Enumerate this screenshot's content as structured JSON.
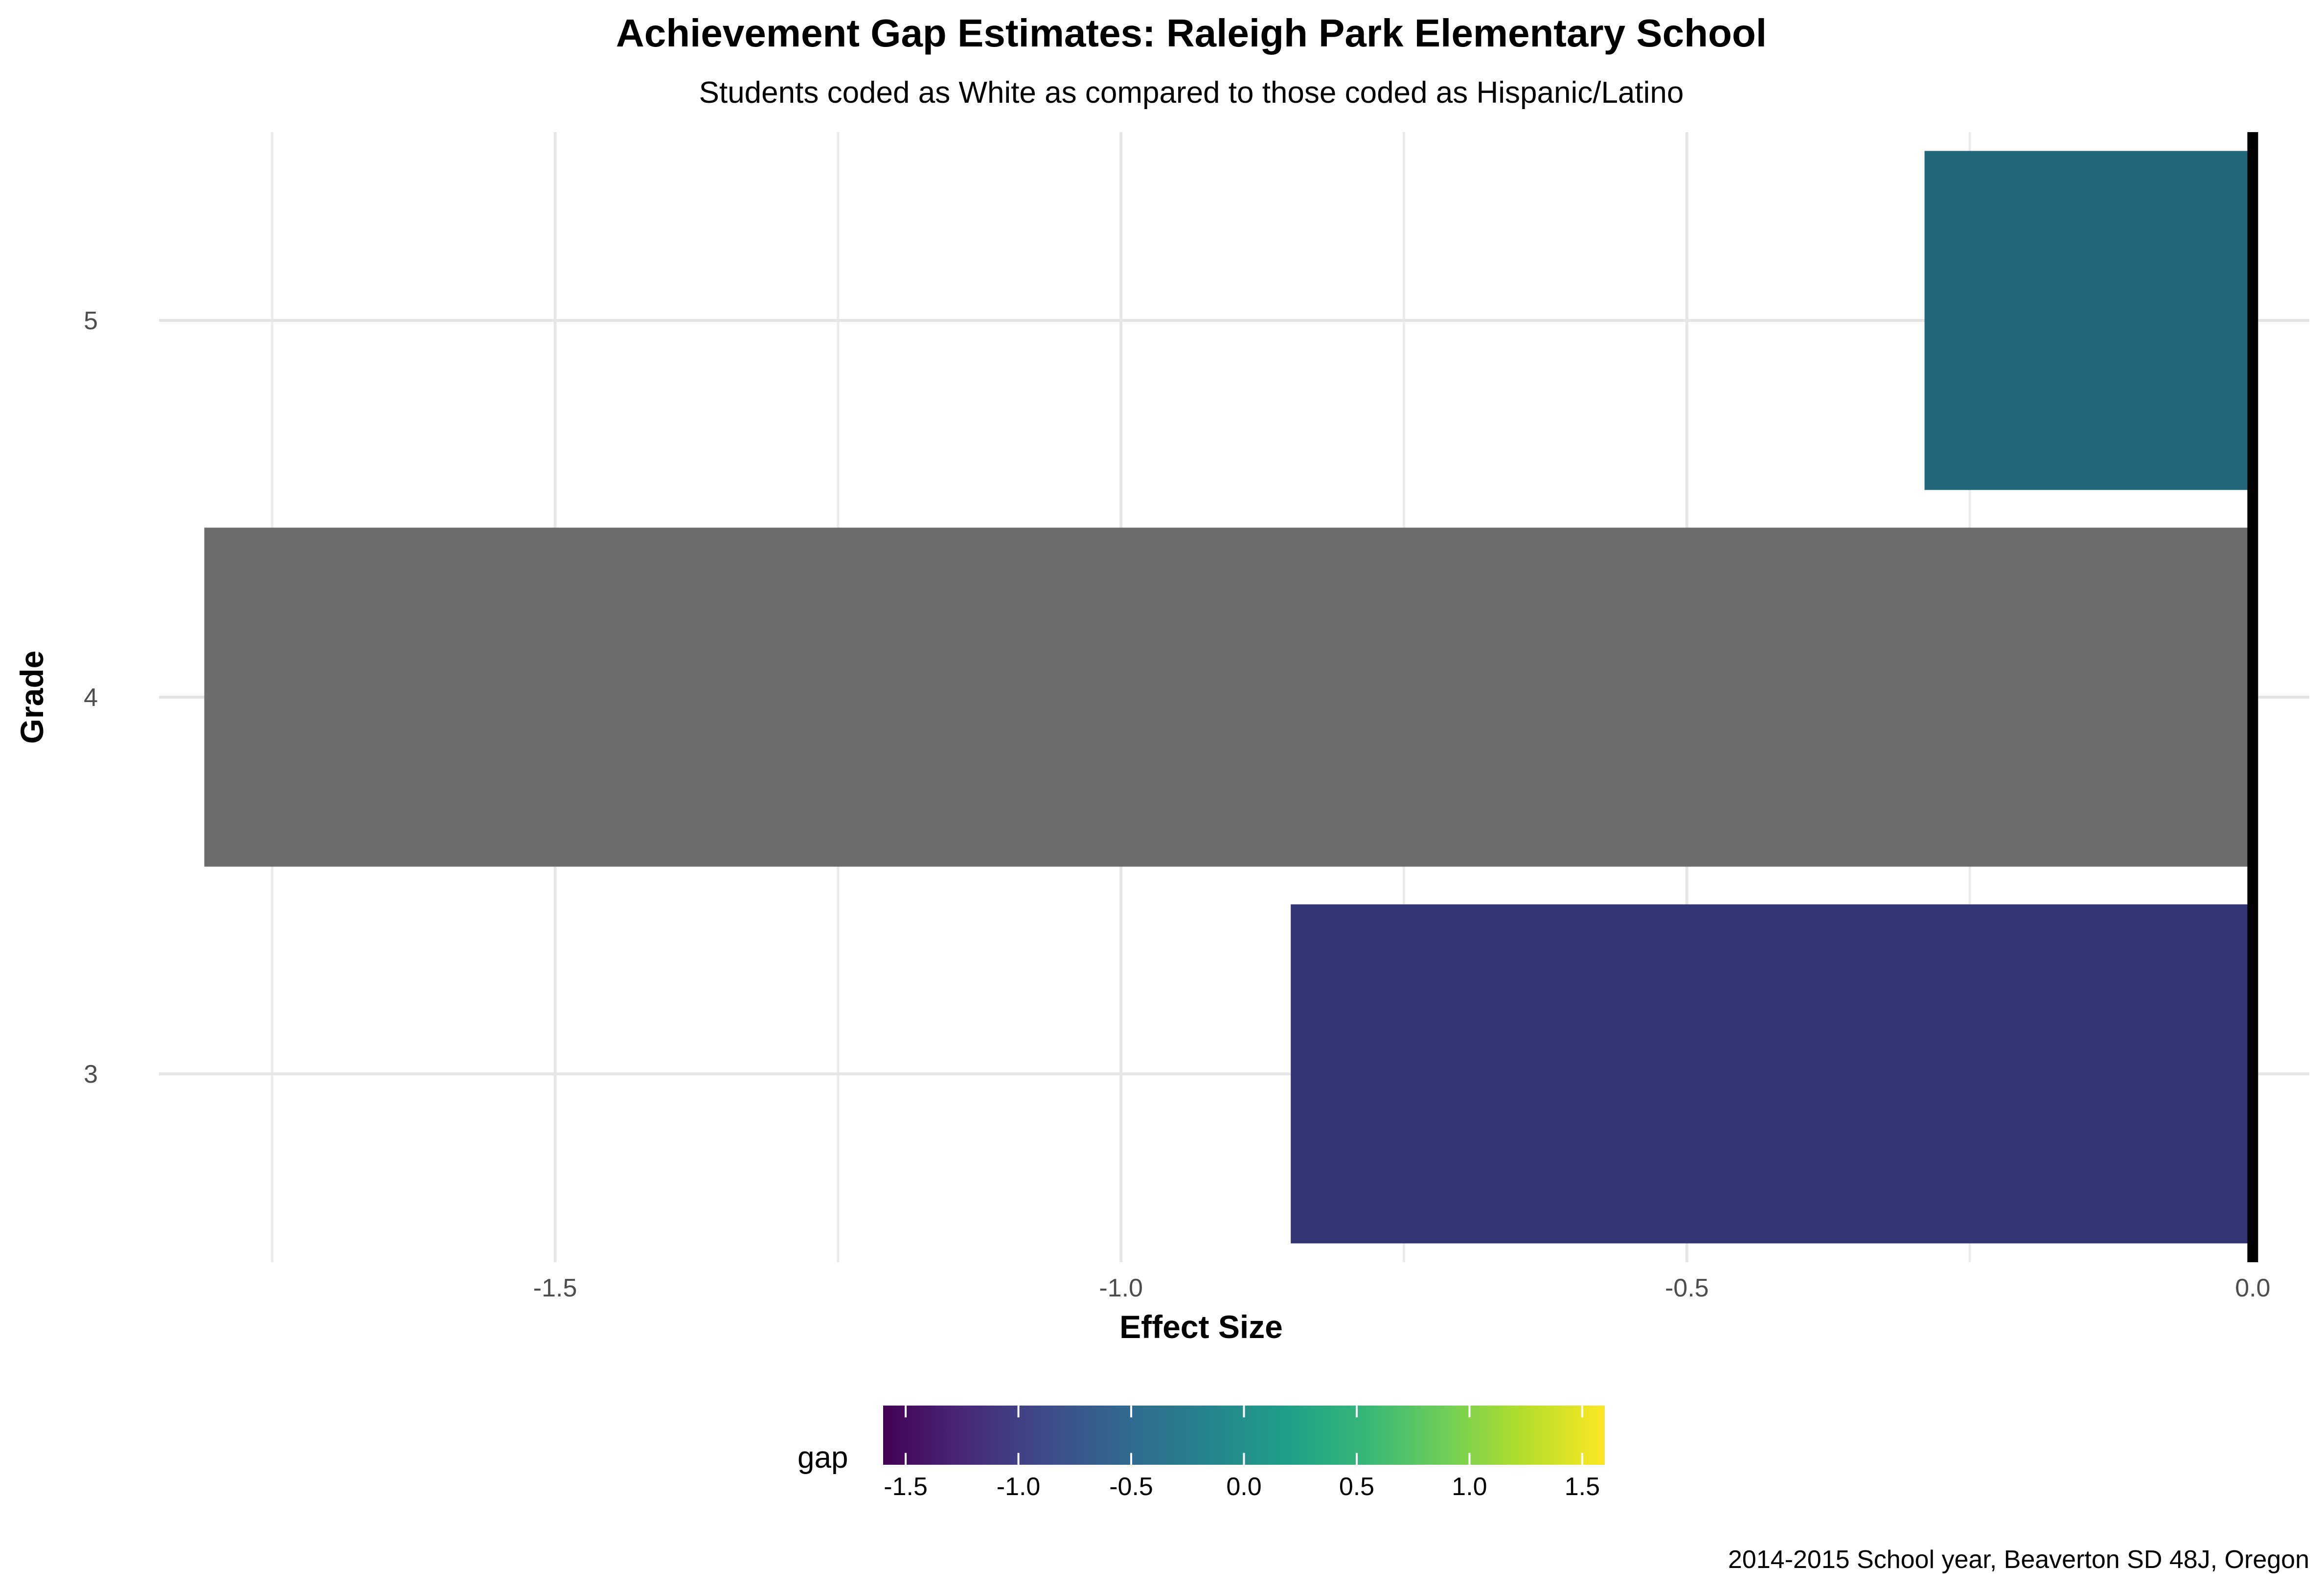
{
  "chart_data": {
    "type": "bar",
    "orientation": "horizontal",
    "title": "Achievement Gap Estimates: Raleigh Park Elementary School",
    "subtitle": "Students coded as White as compared to those coded as Hispanic/Latino",
    "xlabel": "Effect Size",
    "ylabel": "Grade",
    "caption": "2014-2015 School year, Beaverton SD 48J, Oregon",
    "categories": [
      "3",
      "4",
      "5"
    ],
    "values": [
      -0.85,
      -1.81,
      -0.29
    ],
    "bar_colors": [
      "#323774",
      "#6d6d6d",
      "#22677c"
    ],
    "xlim": [
      -1.85,
      0.05
    ],
    "x_ticks": [
      -1.5,
      -1.0,
      -0.5,
      0.0
    ],
    "x_tick_labels": [
      "-1.5",
      "-1.0",
      "-0.5",
      "0.0"
    ],
    "reference_line": 0,
    "grid": true,
    "legend": {
      "title": "gap",
      "position": "bottom",
      "type": "colorbar",
      "palette": "viridis",
      "range": [
        -1.6,
        1.6
      ],
      "ticks": [
        -1.5,
        -1.0,
        -0.5,
        0.0,
        0.5,
        1.0,
        1.5
      ],
      "tick_labels": [
        "-1.5",
        "-1.0",
        "-0.5",
        "0.0",
        "0.5",
        "1.0",
        "1.5"
      ],
      "colors": [
        "#440154",
        "#482878",
        "#3e4a89",
        "#31688e",
        "#26828e",
        "#1f9e89",
        "#35b779",
        "#6ece58",
        "#b5de2b",
        "#fde725"
      ]
    }
  }
}
